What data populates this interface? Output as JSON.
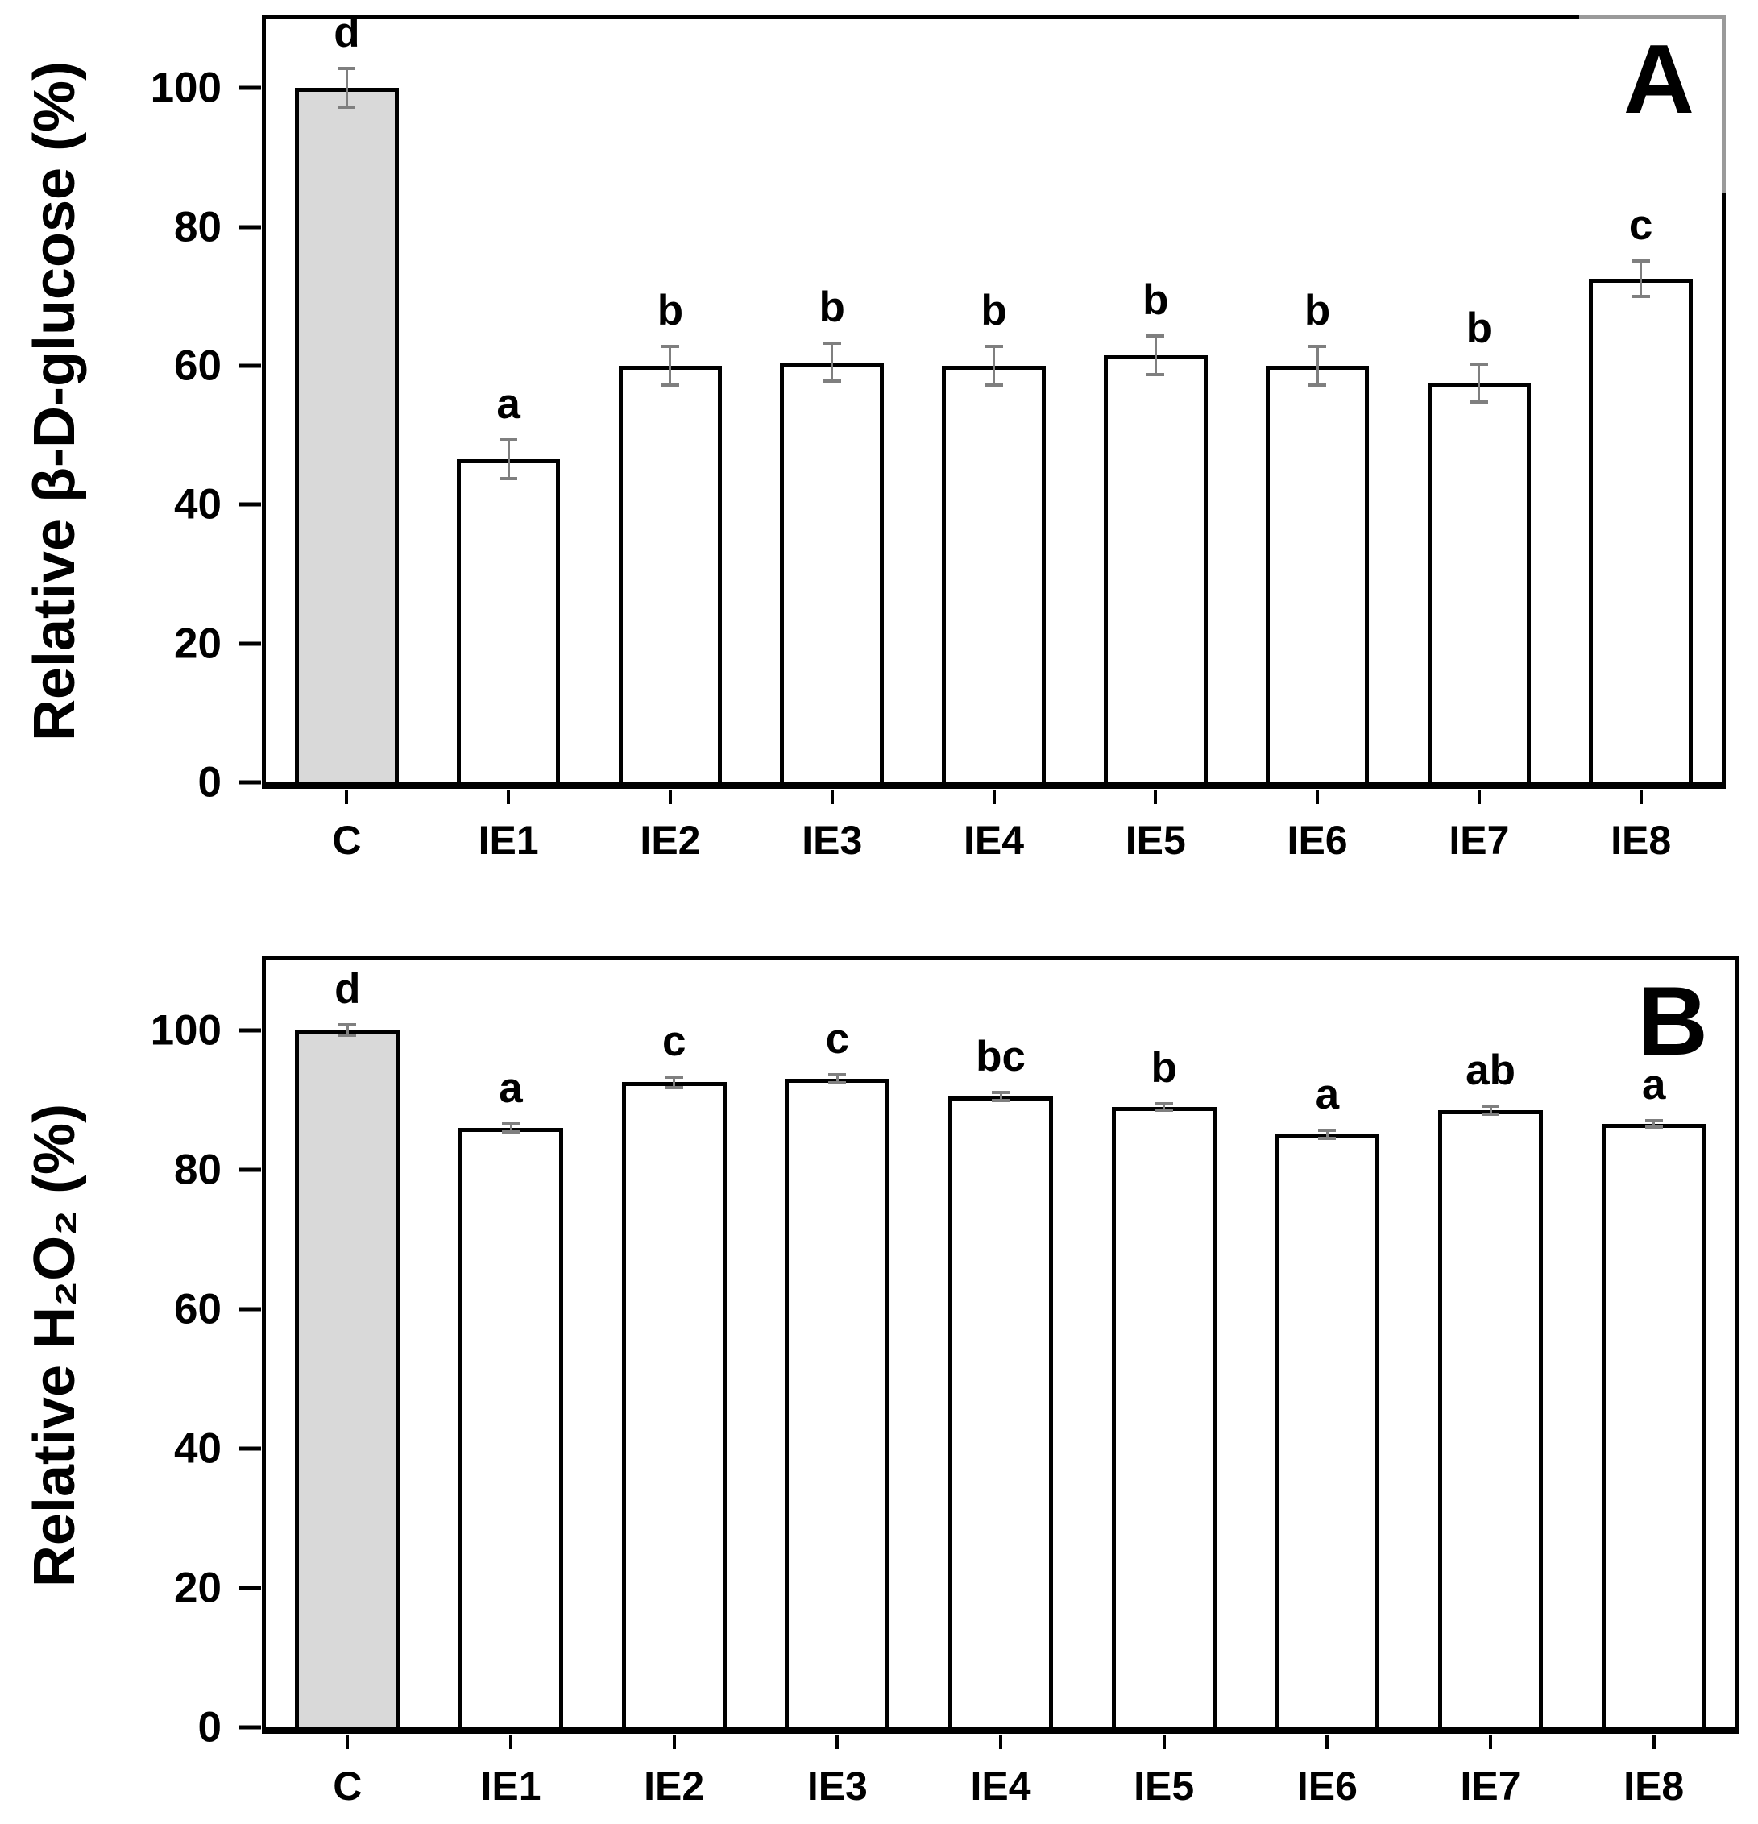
{
  "style": {
    "background": "#ffffff",
    "bar_fill": "#ffffff",
    "control_bar_fill": "#d9d9d9",
    "bar_border": "#000000",
    "error_bar_color": "#7f7f7f",
    "text_color": "#000000"
  },
  "chart_data": [
    {
      "type": "bar",
      "panel_label": "A",
      "ylabel": "Relative β-D-glucose (%)",
      "xlabel": "",
      "categories": [
        "C",
        "IE1",
        "IE2",
        "IE3",
        "IE4",
        "IE5",
        "IE6",
        "IE7",
        "IE8"
      ],
      "values": [
        100,
        46.5,
        60,
        60.5,
        60,
        61.5,
        60,
        57.5,
        72.5
      ],
      "errors": [
        3,
        3,
        3,
        3,
        3,
        3,
        3,
        3,
        2.8
      ],
      "sig_letters": [
        "d",
        "a",
        "b",
        "b",
        "b",
        "b",
        "b",
        "b",
        "c"
      ],
      "yticks": [
        0,
        20,
        40,
        60,
        80,
        100
      ],
      "ylim": [
        0,
        110
      ],
      "grid": false,
      "legend": "none",
      "control_index": 0
    },
    {
      "type": "bar",
      "panel_label": "B",
      "ylabel": "Relative H₂O₂ (%)",
      "xlabel": "",
      "categories": [
        "C",
        "IE1",
        "IE2",
        "IE3",
        "IE4",
        "IE5",
        "IE6",
        "IE7",
        "IE8"
      ],
      "values": [
        100,
        86,
        92.5,
        93,
        90.5,
        89,
        85,
        88.5,
        86.5
      ],
      "errors": [
        1,
        0.8,
        1,
        0.8,
        0.8,
        0.7,
        0.8,
        0.8,
        0.7
      ],
      "sig_letters": [
        "d",
        "a",
        "c",
        "c",
        "bc",
        "b",
        "a",
        "ab",
        "a"
      ],
      "yticks": [
        0,
        20,
        40,
        60,
        80,
        100
      ],
      "ylim": [
        0,
        110
      ],
      "grid": false,
      "legend": "none",
      "control_index": 0
    }
  ]
}
